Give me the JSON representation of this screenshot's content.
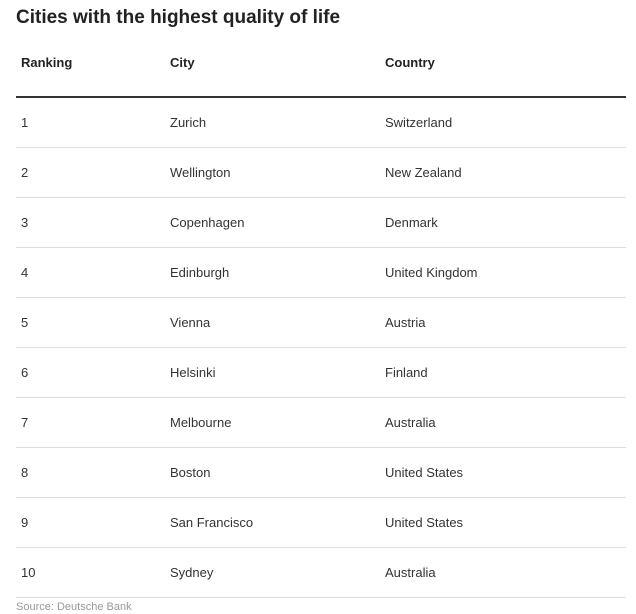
{
  "title": "Cities with the highest quality of life",
  "table": {
    "headers": [
      "Ranking",
      "City",
      "Country"
    ],
    "rows": [
      [
        "1",
        "Zurich",
        "Switzerland"
      ],
      [
        "2",
        "Wellington",
        "New Zealand"
      ],
      [
        "3",
        "Copenhagen",
        "Denmark"
      ],
      [
        "4",
        "Edinburgh",
        "United Kingdom"
      ],
      [
        "5",
        "Vienna",
        "Austria"
      ],
      [
        "6",
        "Helsinki",
        "Finland"
      ],
      [
        "7",
        "Melbourne",
        "Australia"
      ],
      [
        "8",
        "Boston",
        "United States"
      ],
      [
        "9",
        "San Francisco",
        "United States"
      ],
      [
        "10",
        "Sydney",
        "Australia"
      ]
    ]
  },
  "source": "Source: Deutsche Bank"
}
